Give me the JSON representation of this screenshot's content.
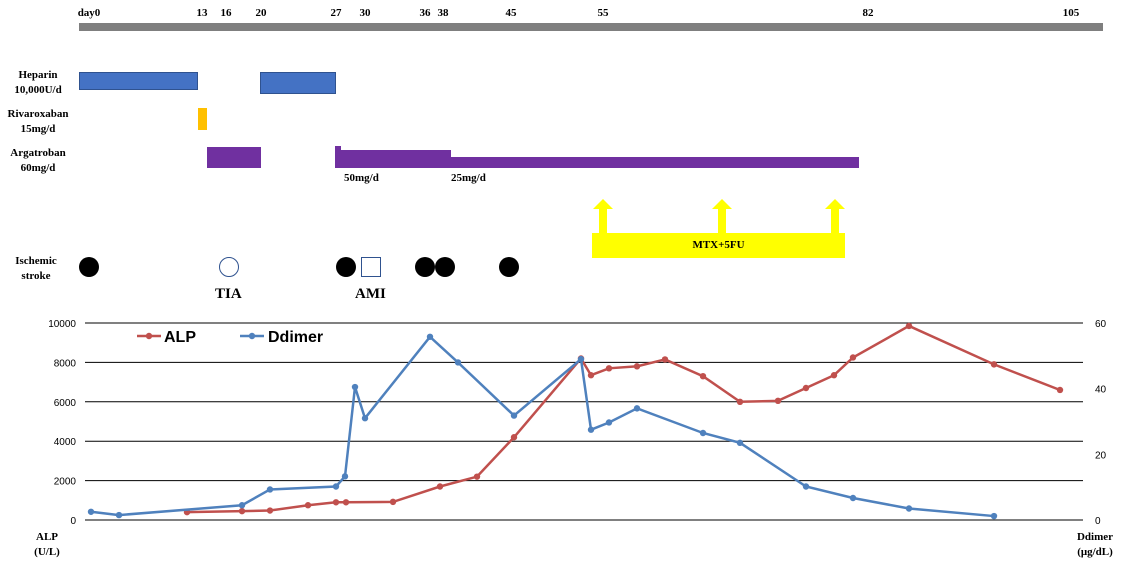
{
  "timeline": {
    "days": [
      "day0",
      "13",
      "16",
      "20",
      "27",
      "30",
      "36",
      "38",
      "45",
      "55",
      "82",
      "105"
    ]
  },
  "drugs": [
    {
      "key": "heparin",
      "name": "Heparin",
      "dose": "10,000U/d",
      "color": "#4472c4"
    },
    {
      "key": "rivaroxaban",
      "name": "Rivaroxaban",
      "dose": "15mg/d",
      "color": "#ffc000"
    },
    {
      "key": "argatroban",
      "name": "Argatroban",
      "dose": "60mg/d",
      "color": "#7030a0"
    }
  ],
  "argatroban_doses": [
    "50mg/d",
    "25mg/d"
  ],
  "chemo": {
    "label": "MTX+5FU",
    "color": "#ffff00"
  },
  "events": {
    "row_label_line1": "Ischemic",
    "row_label_line2": "stroke",
    "tia_label": "TIA",
    "ami_label": "AMI"
  },
  "chart_data": {
    "type": "line",
    "left_axis": {
      "ticks": [
        "10000",
        "8000",
        "6000",
        "4000",
        "2000",
        "0"
      ],
      "range": [
        0,
        10000
      ],
      "label_line1": "ALP",
      "label_line2": "(U/L)"
    },
    "right_axis": {
      "ticks": [
        "60",
        "40",
        "20",
        "0"
      ],
      "range": [
        0,
        60
      ],
      "label_line1": "Ddimer",
      "label_line2": "(μg/dL)"
    },
    "grid": true,
    "legend_position": "top-left",
    "series": [
      {
        "name": "ALP",
        "axis": "left",
        "color": "#c0504d",
        "values": [
          400,
          450,
          480,
          750,
          900,
          900,
          920,
          1700,
          2200,
          4200,
          8200,
          7350,
          7700,
          7800,
          8150,
          7300,
          6000,
          6050,
          6700,
          7350,
          8250,
          9850,
          7900,
          6600
        ]
      },
      {
        "name": "Ddimer",
        "axis": "left-scaled",
        "color": "#4f81bd",
        "values_ug_dl": [
          2.5,
          1.5,
          4.5,
          9.3,
          10.2,
          13.3,
          40.5,
          31.0,
          55.8,
          48.0,
          31.8,
          49.0,
          27.5,
          29.7,
          34.0,
          26.5,
          23.5,
          10.2,
          6.7,
          3.5,
          1.2
        ]
      }
    ]
  }
}
